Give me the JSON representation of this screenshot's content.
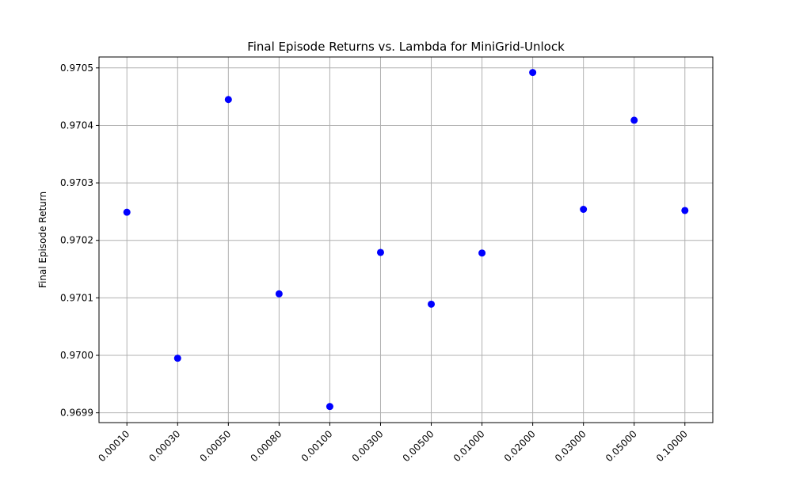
{
  "chart_data": {
    "type": "scatter",
    "title": "Final Episode Returns vs. Lambda for MiniGrid-Unlock",
    "xlabel": "",
    "ylabel": "Final Episode Return",
    "x_categories": [
      "0.00010",
      "0.00030",
      "0.00050",
      "0.00080",
      "0.00100",
      "0.00300",
      "0.00500",
      "0.01000",
      "0.02000",
      "0.03000",
      "0.05000",
      "0.10000"
    ],
    "values": [
      0.970249,
      0.969995,
      0.970445,
      0.970107,
      0.969911,
      0.970179,
      0.970089,
      0.970178,
      0.970492,
      0.970254,
      0.970409,
      0.970252
    ],
    "y_ticks": [
      "0.9699",
      "0.9700",
      "0.9701",
      "0.9702",
      "0.9703",
      "0.9704",
      "0.9705"
    ],
    "ylim": [
      0.969883,
      0.970519
    ],
    "grid": true,
    "legend": "none",
    "marker_color": "#0000ff",
    "grid_color": "#b0b0b0"
  }
}
